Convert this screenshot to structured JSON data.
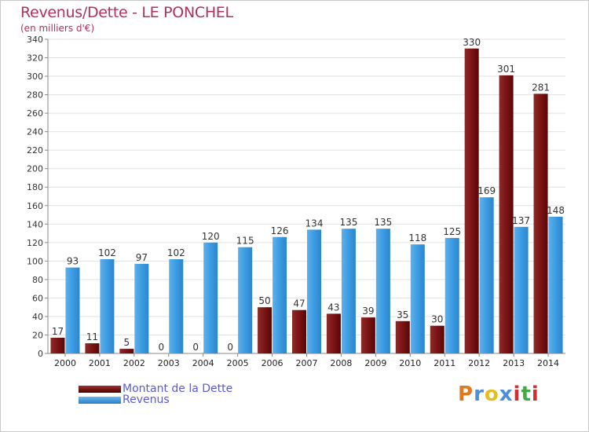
{
  "title": "Revenus/Dette - LE PONCHEL",
  "subtitle": "(en milliers d'€)",
  "colors": {
    "dette": "#7a1616",
    "revenus": "#3c9be2",
    "title": "#b03060",
    "legend_text": "#5b5bd6"
  },
  "legend": [
    {
      "label": "Montant de la Dette",
      "color": "#7a1616"
    },
    {
      "label": "Revenus",
      "color": "#3c9be2"
    }
  ],
  "logo": {
    "letters": [
      "P",
      "r",
      "o",
      "x",
      "i",
      "t",
      "i"
    ],
    "colors": [
      "#e07820",
      "#4a8fd8",
      "#e0c020",
      "#4a8fd8",
      "#d03030",
      "#48a848",
      "#d03030"
    ]
  },
  "chart_data": {
    "type": "bar",
    "title": "Revenus/Dette - LE PONCHEL",
    "subtitle": "(en milliers d'€)",
    "categories": [
      "2000",
      "2001",
      "2002",
      "2003",
      "2004",
      "2005",
      "2006",
      "2007",
      "2008",
      "2009",
      "2010",
      "2011",
      "2012",
      "2013",
      "2014"
    ],
    "series": [
      {
        "name": "Montant de la Dette",
        "values": [
          17,
          11,
          5,
          0,
          0,
          0,
          50,
          47,
          43,
          39,
          35,
          30,
          330,
          301,
          281
        ]
      },
      {
        "name": "Revenus",
        "values": [
          93,
          102,
          97,
          102,
          120,
          115,
          126,
          134,
          135,
          135,
          118,
          125,
          169,
          137,
          148
        ]
      }
    ],
    "ylim": [
      0,
      340
    ],
    "yticks": [
      0,
      20,
      40,
      60,
      80,
      100,
      120,
      140,
      160,
      180,
      200,
      220,
      240,
      260,
      280,
      300,
      320,
      340
    ],
    "grid": true,
    "legend_position": "bottom-left",
    "xlabel": "",
    "ylabel": ""
  }
}
